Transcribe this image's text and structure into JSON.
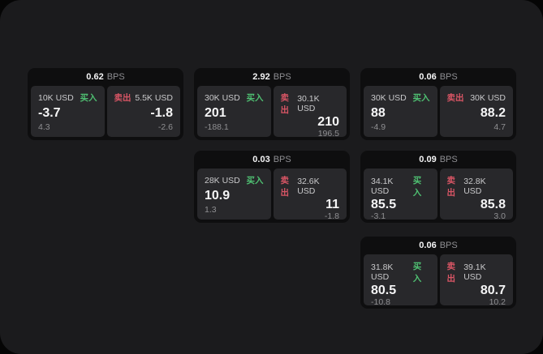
{
  "labels": {
    "buy": "买入",
    "sell": "卖出",
    "bps": "BPS"
  },
  "colors": {
    "page_background": "#050505",
    "panel_background": "#1b1b1d",
    "card_background": "#0e0e0f",
    "tile_background": "#28282b",
    "buy_green": "#4fc072",
    "sell_red": "#d85565",
    "value_white": "#f5f5f6",
    "dim_gray": "#8f8f92"
  },
  "cards": [
    {
      "bps": "0.62",
      "buy": {
        "size": "10K USD",
        "price": "-3.7",
        "delta": "4.3"
      },
      "sell": {
        "size": "5.5K USD",
        "price": "-1.8",
        "delta": "-2.6"
      }
    },
    {
      "bps": "2.92",
      "buy": {
        "size": "30K USD",
        "price": "201",
        "delta": "-188.1"
      },
      "sell": {
        "size": "30.1K USD",
        "price": "210",
        "delta": "196.5"
      }
    },
    {
      "bps": "0.06",
      "buy": {
        "size": "30K USD",
        "price": "88",
        "delta": "-4.9"
      },
      "sell": {
        "size": "30K USD",
        "price": "88.2",
        "delta": "4.7"
      }
    },
    {
      "bps": "0.03",
      "buy": {
        "size": "28K USD",
        "price": "10.9",
        "delta": "1.3"
      },
      "sell": {
        "size": "32.6K USD",
        "price": "11",
        "delta": "-1.8"
      }
    },
    {
      "bps": "0.09",
      "buy": {
        "size": "34.1K USD",
        "price": "85.5",
        "delta": "-3.1"
      },
      "sell": {
        "size": "32.8K USD",
        "price": "85.8",
        "delta": "3.0"
      }
    },
    {
      "bps": "0.06",
      "buy": {
        "size": "31.8K USD",
        "price": "80.5",
        "delta": "-10.8"
      },
      "sell": {
        "size": "39.1K USD",
        "price": "80.7",
        "delta": "10.2"
      }
    }
  ]
}
